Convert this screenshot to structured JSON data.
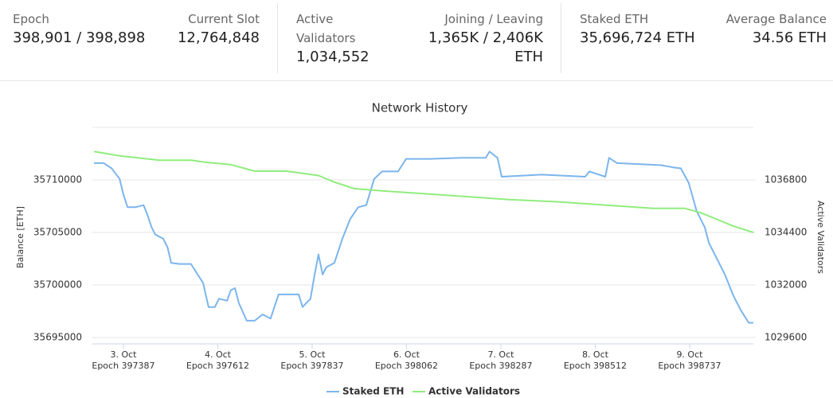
{
  "stats": [
    {
      "label": "Epoch",
      "value": "398,901 / 398,898"
    },
    {
      "label": "Current Slot",
      "value": "12,764,848"
    },
    {
      "label": "Active Validators",
      "value": "1,034,552"
    },
    {
      "label": "Joining / Leaving",
      "value": "1,365K / 2,406K ETH"
    },
    {
      "label": "Staked ETH",
      "value": "35,696,724 ETH"
    },
    {
      "label": "Average Balance",
      "value": "34.56 ETH"
    }
  ],
  "chart_data": {
    "type": "line",
    "title": "Network History",
    "ylabel": "Balance [ETH]",
    "y2label": "Active Validators",
    "xlim": [
      397313,
      398889
    ],
    "xticks": [
      {
        "value": 397387,
        "label": "3. Oct",
        "sublabel": "Epoch 397387"
      },
      {
        "value": 397612,
        "label": "4. Oct",
        "sublabel": "Epoch 397612"
      },
      {
        "value": 397837,
        "label": "5. Oct",
        "sublabel": "Epoch 397837"
      },
      {
        "value": 398062,
        "label": "6. Oct",
        "sublabel": "Epoch 398062"
      },
      {
        "value": 398287,
        "label": "7. Oct",
        "sublabel": "Epoch 398287"
      },
      {
        "value": 398512,
        "label": "8. Oct",
        "sublabel": "Epoch 398512"
      },
      {
        "value": 398737,
        "label": "9. Oct",
        "sublabel": "Epoch 398737"
      }
    ],
    "ylim": [
      35695000,
      35715000
    ],
    "yticks": [
      35695000,
      35700000,
      35705000,
      35710000
    ],
    "y2lim": [
      1029600,
      1039200
    ],
    "y2ticks": [
      1029600,
      1032000,
      1034400,
      1036800
    ],
    "grid": true,
    "legend": "bottom",
    "series": [
      {
        "name": "Staked ETH",
        "color": "#7cb5ec",
        "axis": "y",
        "x": [
          397317,
          397340,
          397359,
          397378,
          397387,
          397397,
          397416,
          397435,
          397444,
          397454,
          397463,
          397482,
          397492,
          397501,
          397520,
          397548,
          397564,
          397577,
          397590,
          397605,
          397615,
          397634,
          397643,
          397653,
          397662,
          397681,
          397700,
          397719,
          397738,
          397757,
          397805,
          397814,
          397833,
          397843,
          397852,
          397862,
          397871,
          397890,
          397909,
          397928,
          397947,
          397966,
          397985,
          398004,
          398042,
          398061,
          398118,
          398194,
          398251,
          398260,
          398279,
          398289,
          398384,
          398488,
          398498,
          398536,
          398545,
          398564,
          398669,
          398697,
          398716,
          398735,
          398754,
          398773,
          398783,
          398802,
          398821,
          398840,
          398859,
          398878,
          398889
        ],
        "values": [
          35711600,
          35711600,
          35711100,
          35710100,
          35708600,
          35707400,
          35707400,
          35707600,
          35706700,
          35705500,
          35704800,
          35704400,
          35703600,
          35702100,
          35702000,
          35702000,
          35701000,
          35700200,
          35697900,
          35697900,
          35698700,
          35698500,
          35699500,
          35699700,
          35698300,
          35696600,
          35696600,
          35697200,
          35696800,
          35699100,
          35699100,
          35697900,
          35698700,
          35701000,
          35702900,
          35701000,
          35701700,
          35702100,
          35704400,
          35706300,
          35707400,
          35707600,
          35710100,
          35710800,
          35710800,
          35712000,
          35712000,
          35712100,
          35712100,
          35712700,
          35712100,
          35710300,
          35710500,
          35710300,
          35710800,
          35710300,
          35712100,
          35711600,
          35711400,
          35711200,
          35711100,
          35709700,
          35707000,
          35705500,
          35704000,
          35702500,
          35701000,
          35699100,
          35697600,
          35696400,
          35696400
        ]
      },
      {
        "name": "Active Validators",
        "color": "#90ed7d",
        "axis": "y2",
        "x": [
          397317,
          397378,
          397473,
          397548,
          397586,
          397643,
          397700,
          397776,
          397852,
          397890,
          397938,
          398004,
          398080,
          398156,
          398232,
          398308,
          398422,
          398498,
          398574,
          398650,
          398726,
          398764,
          398802,
          398840,
          398889
        ],
        "values": [
          1038100,
          1037900,
          1037700,
          1037700,
          1037600,
          1037500,
          1037200,
          1037200,
          1037000,
          1036700,
          1036400,
          1036300,
          1036200,
          1036100,
          1036000,
          1035900,
          1035800,
          1035700,
          1035600,
          1035500,
          1035500,
          1035300,
          1035000,
          1034700,
          1034400
        ]
      }
    ]
  }
}
